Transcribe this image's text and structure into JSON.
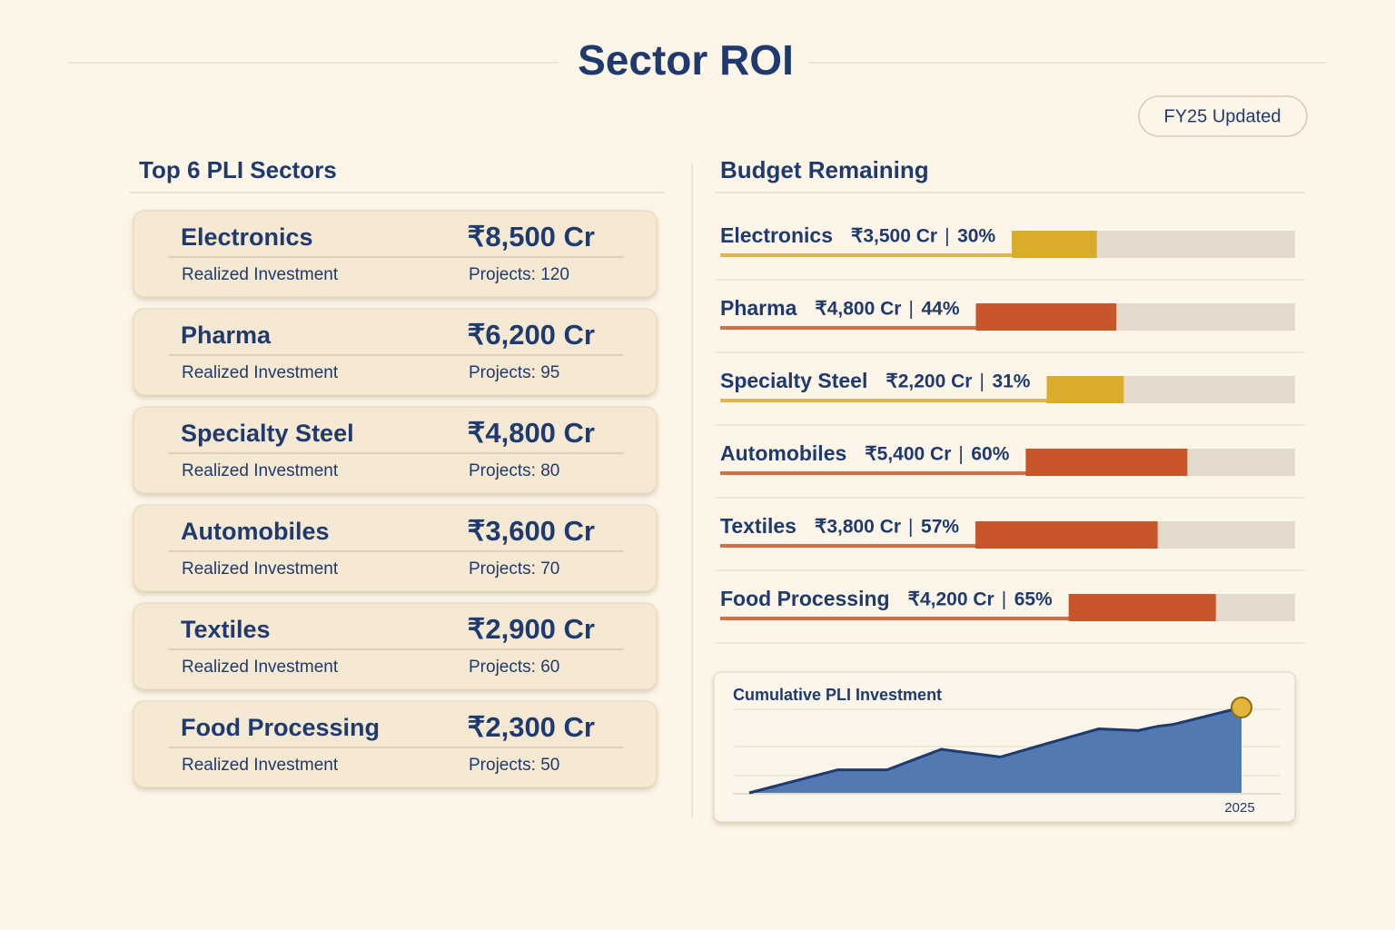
{
  "header": {
    "title": "Sector ROI",
    "badge": "FY25 Updated"
  },
  "sectors": {
    "title": "Top 6 PLI Sectors",
    "items": [
      {
        "name": "Electronics",
        "amount": "₹8,500 Cr",
        "label": "Realized Investment",
        "projects": "Projects: 120"
      },
      {
        "name": "Pharma",
        "amount": "₹6,200 Cr",
        "label": "Realized Investment",
        "projects": "Projects: 95"
      },
      {
        "name": "Specialty Steel",
        "amount": "₹4,800 Cr",
        "label": "Realized Investment",
        "projects": "Projects: 80"
      },
      {
        "name": "Automobiles",
        "amount": "₹3,600 Cr",
        "label": "Realized Investment",
        "projects": "Projects: 70"
      },
      {
        "name": "Textiles",
        "amount": "₹2,900 Cr",
        "label": "Realized Investment",
        "projects": "Projects: 60"
      },
      {
        "name": "Food Processing",
        "amount": "₹2,300 Cr",
        "label": "Realized Investment",
        "projects": "Projects: 50"
      }
    ]
  },
  "budget": {
    "title": "Budget Remaining",
    "items": [
      {
        "name": "Electronics",
        "amount": "₹3,500 Cr",
        "percent": 30,
        "percent_label": "30%",
        "color": "#d9ac2c"
      },
      {
        "name": "Pharma",
        "amount": "₹4,800 Cr",
        "percent": 44,
        "percent_label": "44%",
        "color": "#c9552a"
      },
      {
        "name": "Specialty Steel",
        "amount": "₹2,200 Cr",
        "percent": 31,
        "percent_label": "31%",
        "color": "#d9ac2c"
      },
      {
        "name": "Automobiles",
        "amount": "₹5,400 Cr",
        "percent": 60,
        "percent_label": "60%",
        "color": "#c9552a"
      },
      {
        "name": "Textiles",
        "amount": "₹3,800 Cr",
        "percent": 57,
        "percent_label": "57%",
        "color": "#c9552a"
      },
      {
        "name": "Food Processing",
        "amount": "₹4,200 Cr",
        "percent": 65,
        "percent_label": "65%",
        "color": "#c9552a"
      }
    ]
  },
  "chart_data": {
    "type": "area",
    "title": "Cumulative PLI Investment",
    "x_label": "2025",
    "x": [
      0,
      18,
      28,
      39,
      51,
      60,
      71,
      79,
      83,
      86,
      100
    ],
    "values": [
      0,
      27,
      27,
      51,
      42,
      57,
      75,
      73,
      78,
      80,
      100
    ],
    "xlim": [
      0,
      100
    ],
    "ylim": [
      0,
      100
    ],
    "color": "#4a72b0"
  }
}
